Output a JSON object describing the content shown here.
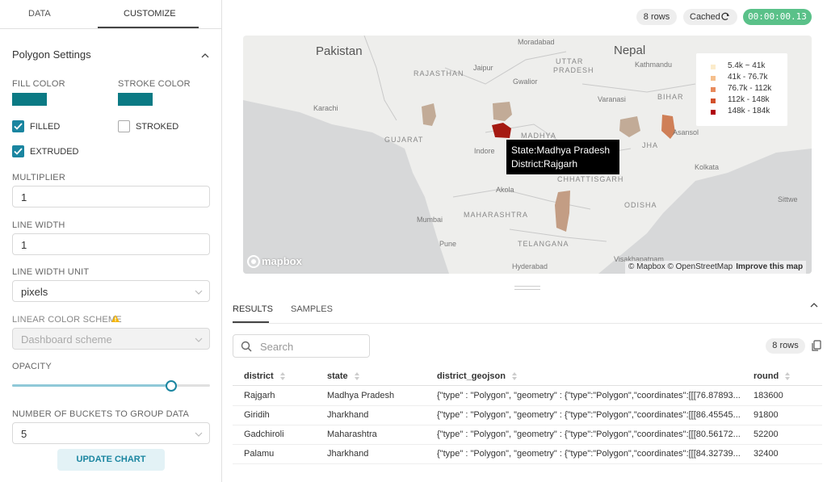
{
  "sidebar": {
    "tabs": [
      "DATA",
      "CUSTOMIZE"
    ],
    "section_title": "Polygon Settings",
    "fill_color_label": "FILL COLOR",
    "fill_color": "#0b7a84",
    "stroke_color_label": "STROKE COLOR",
    "stroke_color": "#0b7a84",
    "checkboxes": [
      {
        "label": "FILLED",
        "checked": true
      },
      {
        "label": "STROKED",
        "checked": false
      },
      {
        "label": "EXTRUDED",
        "checked": true
      }
    ],
    "multiplier_label": "MULTIPLIER",
    "multiplier": "1",
    "line_width_label": "LINE WIDTH",
    "line_width": "1",
    "line_width_unit_label": "LINE WIDTH UNIT",
    "line_width_unit": "pixels",
    "color_scheme_label": "LINEAR COLOR SCHEME",
    "color_scheme": "Dashboard scheme",
    "opacity_label": "OPACITY",
    "buckets_label": "NUMBER OF BUCKETS TO GROUP DATA",
    "buckets": "5",
    "button": "UPDATE CHART"
  },
  "toolbar": {
    "row_count": "8 rows",
    "cached": "Cached",
    "timer": "00:00:00.13"
  },
  "map": {
    "places": [
      "Pakistan",
      "Nepal",
      "Moradabad",
      "UTTAR",
      "PRADESH",
      "Kathmandu",
      "RAJASTHAN",
      "Jaipur",
      "Gwalior",
      "Varanasi",
      "BIHAR",
      "Karachi",
      "GUJARAT",
      "MADHYA",
      "Indore",
      "JHA",
      "Asansol",
      "Kolkata",
      "CHHATTISGARH",
      "Akola",
      "ODISHA",
      "Sittwe",
      "Mumbai",
      "MAHARASHTRA",
      "Pune",
      "TELANGANA",
      "Hyderabad",
      "Visakhapatnam"
    ],
    "legend": [
      {
        "label": "5.4k ~ 41k",
        "color": "#fbeccb"
      },
      {
        "label": "41k - 76.7k",
        "color": "#f5bf8c"
      },
      {
        "label": "76.7k - 112k",
        "color": "#e88a5c"
      },
      {
        "label": "112k - 148k",
        "color": "#d2502b"
      },
      {
        "label": "148k - 184k",
        "color": "#b0000e"
      }
    ],
    "tooltip": [
      "State:Madhya Pradesh",
      "District:Rajgarh"
    ],
    "logo": "mapbox",
    "attribution": "© Mapbox © OpenStreetMap",
    "improve": "Improve this map"
  },
  "results": {
    "tabs": [
      "RESULTS",
      "SAMPLES"
    ],
    "search_placeholder": "Search",
    "row_count": "8 rows",
    "columns": [
      "district",
      "state",
      "district_geojson",
      "round"
    ],
    "rows": [
      [
        "Rajgarh",
        "Madhya Pradesh",
        "{\"type\" : \"Polygon\", \"geometry\" : {\"type\":\"Polygon\",\"coordinates\":[[[76.87893...",
        183600
      ],
      [
        "Giridih",
        "Jharkhand",
        "{\"type\" : \"Polygon\", \"geometry\" : {\"type\":\"Polygon\",\"coordinates\":[[[86.45545...",
        91800
      ],
      [
        "Gadchiroli",
        "Maharashtra",
        "{\"type\" : \"Polygon\", \"geometry\" : {\"type\":\"Polygon\",\"coordinates\":[[[80.56172...",
        52200
      ],
      [
        "Palamu",
        "Jharkhand",
        "{\"type\" : \"Polygon\", \"geometry\" : {\"type\":\"Polygon\",\"coordinates\":[[[84.32739...",
        32400
      ]
    ]
  }
}
